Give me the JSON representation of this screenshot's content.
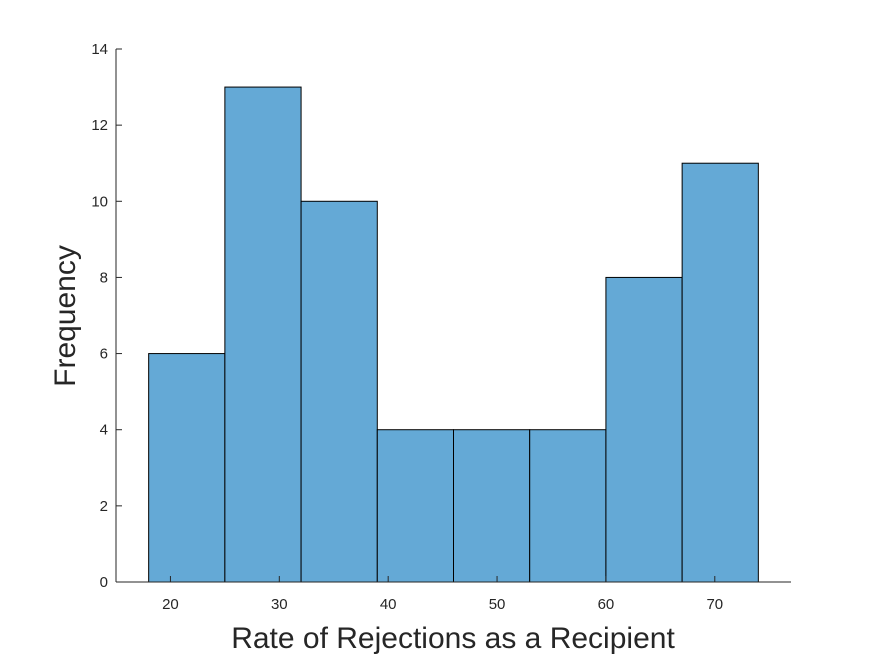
{
  "chart_data": {
    "type": "bar",
    "subtype": "histogram",
    "title": "",
    "xlabel": "Rate of Rejections as a Recipient",
    "ylabel": "Frequency",
    "bin_edges": [
      18,
      25,
      32,
      39,
      46,
      53,
      60,
      67,
      74
    ],
    "values": [
      6,
      13,
      10,
      4,
      4,
      4,
      8,
      11
    ],
    "xlim": [
      15,
      77
    ],
    "ylim": [
      0,
      14
    ],
    "xticks": [
      20,
      30,
      40,
      50,
      60,
      70
    ],
    "yticks": [
      0,
      2,
      4,
      6,
      8,
      10,
      12,
      14
    ],
    "bar_color": "#64a9d6",
    "edge_color": "#000000",
    "grid": false,
    "legend": "none"
  }
}
